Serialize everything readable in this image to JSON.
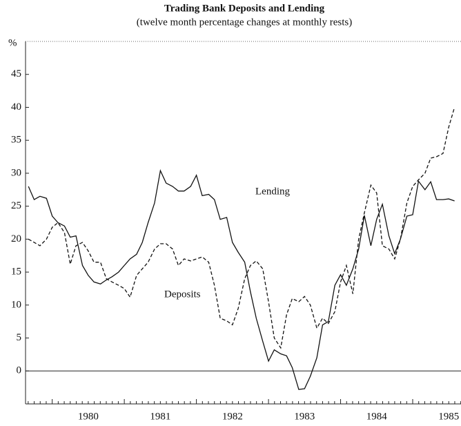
{
  "chart_data": {
    "type": "line",
    "title": "Trading Bank Deposits and Lending",
    "subtitle": "(twelve month percentage changes at monthly rests)",
    "ylabel": "%",
    "x": [
      1979.67,
      1979.75,
      1979.83,
      1979.92,
      1980.0,
      1980.08,
      1980.17,
      1980.25,
      1980.33,
      1980.42,
      1980.5,
      1980.58,
      1980.67,
      1980.75,
      1980.83,
      1980.92,
      1981.0,
      1981.08,
      1981.17,
      1981.25,
      1981.33,
      1981.42,
      1981.5,
      1981.58,
      1981.67,
      1981.75,
      1981.83,
      1981.92,
      1982.0,
      1982.08,
      1982.17,
      1982.25,
      1982.33,
      1982.42,
      1982.5,
      1982.58,
      1982.67,
      1982.75,
      1982.83,
      1982.92,
      1983.0,
      1983.08,
      1983.17,
      1983.25,
      1983.33,
      1983.42,
      1983.5,
      1983.58,
      1983.67,
      1983.75,
      1983.83,
      1983.92,
      1984.0,
      1984.08,
      1984.17,
      1984.25,
      1984.33,
      1984.42,
      1984.5,
      1984.58,
      1984.67,
      1984.75,
      1984.83,
      1984.92,
      1985.0,
      1985.08,
      1985.17,
      1985.25,
      1985.33,
      1985.42,
      1985.5,
      1985.58
    ],
    "series": [
      {
        "name": "Lending",
        "color": "#111111",
        "style": "solid",
        "values": [
          28,
          26,
          26.5,
          26.2,
          23.5,
          22.5,
          22,
          20.3,
          20.5,
          16,
          14.5,
          13.5,
          13.2,
          13.8,
          14.3,
          15,
          16,
          17,
          17.7,
          19.5,
          22.5,
          25.5,
          30.4,
          28.5,
          28,
          27.3,
          27.3,
          28,
          29.7,
          26.6,
          26.8,
          26,
          23,
          23.3,
          19.5,
          18,
          16.5,
          12,
          8,
          4.5,
          1.5,
          3.2,
          2.6,
          2.3,
          0.5,
          -2.8,
          -2.7,
          -0.8,
          2,
          7,
          7.5,
          13,
          14.6,
          13,
          15.5,
          18.5,
          23.6,
          19,
          23,
          25.3,
          20.5,
          17.8,
          20,
          23.5,
          23.7,
          28.8,
          27.5,
          28.7,
          26,
          26,
          26.1,
          25.8
        ]
      },
      {
        "name": "Deposits",
        "color": "#111111",
        "style": "dashed",
        "values": [
          20,
          19.5,
          19,
          20,
          21.8,
          22.5,
          21,
          16.2,
          19,
          19.5,
          18.2,
          16.5,
          16.5,
          14,
          13.5,
          13,
          12.5,
          11.2,
          14.5,
          15.5,
          16.5,
          18.5,
          19.3,
          19.3,
          18.5,
          16,
          17,
          16.7,
          17,
          17.3,
          16.5,
          13,
          8,
          7.6,
          7,
          9.5,
          14,
          16,
          16.7,
          15.5,
          10.5,
          5,
          3.5,
          8.5,
          11,
          10.5,
          11.3,
          10,
          6.5,
          8,
          7.2,
          9,
          13.5,
          16,
          11.7,
          20,
          24,
          28.2,
          27,
          19,
          18.5,
          17,
          20,
          25.5,
          28,
          29,
          30,
          32.3,
          32.5,
          33,
          37,
          40
        ]
      }
    ],
    "xlim": [
      1979.63,
      1985.67
    ],
    "xticks": [
      {
        "value": 1980.5,
        "label": "1980"
      },
      {
        "value": 1981.5,
        "label": "1981"
      },
      {
        "value": 1982.5,
        "label": "1982"
      },
      {
        "value": 1983.5,
        "label": "1983"
      },
      {
        "value": 1984.5,
        "label": "1984"
      },
      {
        "value": 1985.5,
        "label": "1985"
      }
    ],
    "ylim": [
      -5,
      50
    ],
    "yticks": [
      0,
      5,
      10,
      15,
      20,
      25,
      30,
      35,
      40,
      45
    ],
    "zero_line": true
  }
}
